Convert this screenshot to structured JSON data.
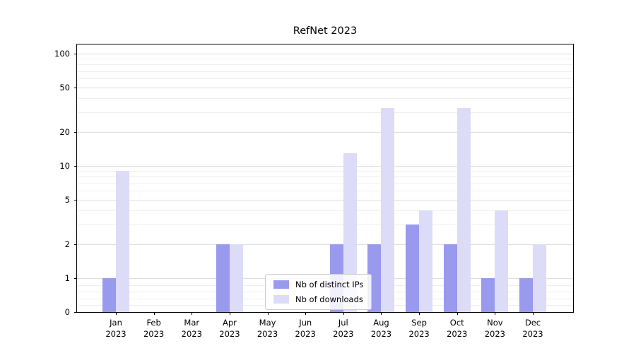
{
  "chart_data": {
    "type": "bar",
    "title": "RefNet 2023",
    "yscale": "symlog",
    "ylim": [
      0,
      115
    ],
    "grid": true,
    "legend_position": "lower center",
    "yticks": [
      0,
      1,
      2,
      5,
      10,
      20,
      50,
      100
    ],
    "minor_gridlines": [
      0.2,
      0.4,
      0.6,
      0.8,
      3,
      4,
      6,
      7,
      8,
      9,
      30,
      40,
      60,
      70,
      80,
      90
    ],
    "categories": [
      {
        "month": "Jan",
        "year": "2023"
      },
      {
        "month": "Feb",
        "year": "2023"
      },
      {
        "month": "Mar",
        "year": "2023"
      },
      {
        "month": "Apr",
        "year": "2023"
      },
      {
        "month": "May",
        "year": "2023"
      },
      {
        "month": "Jun",
        "year": "2023"
      },
      {
        "month": "Jul",
        "year": "2023"
      },
      {
        "month": "Aug",
        "year": "2023"
      },
      {
        "month": "Sep",
        "year": "2023"
      },
      {
        "month": "Oct",
        "year": "2023"
      },
      {
        "month": "Nov",
        "year": "2023"
      },
      {
        "month": "Dec",
        "year": "2023"
      }
    ],
    "series": [
      {
        "name": "Nb of distinct IPs",
        "color": "#9999ee",
        "values": [
          1,
          0,
          0,
          2,
          0,
          0,
          2,
          2,
          3,
          2,
          1,
          1
        ]
      },
      {
        "name": "Nb of downloads",
        "color": "#dcdcf8",
        "values": [
          9,
          0,
          0,
          2,
          0,
          0,
          13,
          33,
          4,
          33,
          4,
          2
        ]
      }
    ]
  }
}
